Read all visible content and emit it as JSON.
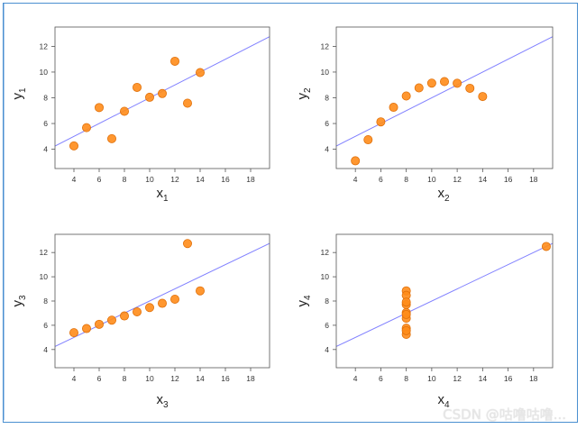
{
  "chart_data": [
    {
      "type": "scatter",
      "xlabel": "x",
      "xlabel_sub": "1",
      "ylabel": "y",
      "ylabel_sub": "1",
      "xlim": [
        2.5,
        19.5
      ],
      "ylim": [
        2.5,
        13.5
      ],
      "xticks": [
        4,
        6,
        8,
        10,
        12,
        14,
        16,
        18
      ],
      "yticks": [
        4,
        6,
        8,
        10,
        12
      ],
      "x": [
        10,
        8,
        13,
        9,
        11,
        14,
        6,
        4,
        12,
        7,
        5
      ],
      "y": [
        8.04,
        6.95,
        7.58,
        8.81,
        8.33,
        9.96,
        7.24,
        4.26,
        10.84,
        4.82,
        5.68
      ],
      "regression": {
        "intercept": 3.0,
        "slope": 0.5
      }
    },
    {
      "type": "scatter",
      "xlabel": "x",
      "xlabel_sub": "2",
      "ylabel": "y",
      "ylabel_sub": "2",
      "xlim": [
        2.5,
        19.5
      ],
      "ylim": [
        2.5,
        13.5
      ],
      "xticks": [
        4,
        6,
        8,
        10,
        12,
        14,
        16,
        18
      ],
      "yticks": [
        4,
        6,
        8,
        10,
        12
      ],
      "x": [
        10,
        8,
        13,
        9,
        11,
        14,
        6,
        4,
        12,
        7,
        5
      ],
      "y": [
        9.14,
        8.14,
        8.74,
        8.77,
        9.26,
        8.1,
        6.13,
        3.1,
        9.13,
        7.26,
        4.74
      ],
      "regression": {
        "intercept": 3.0,
        "slope": 0.5
      }
    },
    {
      "type": "scatter",
      "xlabel": "x",
      "xlabel_sub": "3",
      "ylabel": "y",
      "ylabel_sub": "3",
      "xlim": [
        2.5,
        19.5
      ],
      "ylim": [
        2.5,
        13.5
      ],
      "xticks": [
        4,
        6,
        8,
        10,
        12,
        14,
        16,
        18
      ],
      "yticks": [
        4,
        6,
        8,
        10,
        12
      ],
      "x": [
        10,
        8,
        13,
        9,
        11,
        14,
        6,
        4,
        12,
        7,
        5
      ],
      "y": [
        7.46,
        6.77,
        12.74,
        7.11,
        7.81,
        8.84,
        6.08,
        5.39,
        8.15,
        6.42,
        5.73
      ],
      "regression": {
        "intercept": 3.0,
        "slope": 0.5
      }
    },
    {
      "type": "scatter",
      "xlabel": "x",
      "xlabel_sub": "4",
      "ylabel": "y",
      "ylabel_sub": "4",
      "xlim": [
        2.5,
        19.5
      ],
      "ylim": [
        2.5,
        13.5
      ],
      "xticks": [
        4,
        6,
        8,
        10,
        12,
        14,
        16,
        18
      ],
      "yticks": [
        4,
        6,
        8,
        10,
        12
      ],
      "x": [
        8,
        8,
        8,
        8,
        8,
        8,
        8,
        19,
        8,
        8,
        8
      ],
      "y": [
        6.58,
        5.76,
        7.71,
        8.84,
        8.47,
        7.04,
        5.25,
        12.5,
        5.56,
        7.91,
        6.89
      ],
      "regression": {
        "intercept": 3.0,
        "slope": 0.5
      }
    }
  ],
  "colors": {
    "point_fill": "#ff8c1a",
    "point_stroke": "#e0700a",
    "regression_line": "#8080ff",
    "axis": "#555555",
    "frame": "#4a8fd0"
  },
  "watermark": "CSDN @咕噜咕噜..."
}
